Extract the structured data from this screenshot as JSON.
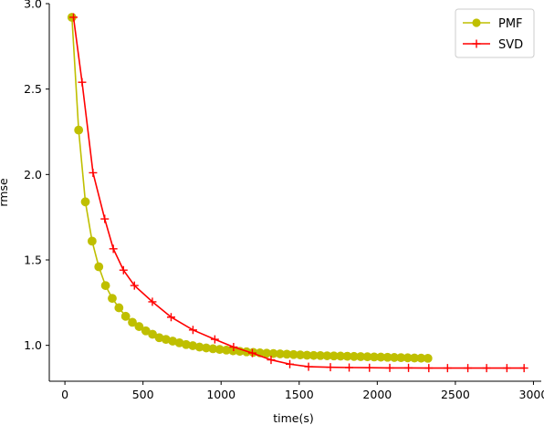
{
  "chart_data": {
    "type": "line",
    "xlabel": "time(s)",
    "ylabel": "rmse",
    "xlim": [
      -100,
      3050
    ],
    "ylim": [
      0.79,
      3.0
    ],
    "xticks": [
      0,
      500,
      1000,
      1500,
      2000,
      2500,
      3000
    ],
    "yticks": [
      1.0,
      1.5,
      2.0,
      2.5,
      3.0
    ],
    "xtick_labels": [
      "0",
      "500",
      "1000",
      "1500",
      "2000",
      "2500",
      "3000"
    ],
    "ytick_labels": [
      "1.0",
      "1.5",
      "2.0",
      "2.5",
      "3.0"
    ],
    "grid": false,
    "legend_position": "top-right",
    "series": [
      {
        "name": "PMF",
        "color": "#bfbf00",
        "marker": "circle",
        "x": [
          45,
          88,
          131,
          174,
          217,
          260,
          303,
          346,
          389,
          432,
          475,
          518,
          561,
          604,
          647,
          690,
          733,
          776,
          819,
          862,
          905,
          948,
          991,
          1034,
          1077,
          1120,
          1163,
          1206,
          1249,
          1292,
          1335,
          1378,
          1421,
          1464,
          1507,
          1550,
          1593,
          1636,
          1679,
          1722,
          1765,
          1808,
          1851,
          1894,
          1937,
          1980,
          2023,
          2066,
          2109,
          2152,
          2195,
          2238,
          2281,
          2324
        ],
        "y": [
          2.92,
          2.26,
          1.84,
          1.61,
          1.46,
          1.35,
          1.275,
          1.22,
          1.17,
          1.135,
          1.11,
          1.085,
          1.065,
          1.045,
          1.035,
          1.025,
          1.015,
          1.005,
          0.998,
          0.99,
          0.985,
          0.98,
          0.976,
          0.972,
          0.968,
          0.965,
          0.962,
          0.959,
          0.956,
          0.954,
          0.952,
          0.95,
          0.948,
          0.946,
          0.944,
          0.942,
          0.941,
          0.94,
          0.939,
          0.938,
          0.937,
          0.936,
          0.935,
          0.934,
          0.933,
          0.932,
          0.931,
          0.93,
          0.929,
          0.928,
          0.927,
          0.926,
          0.925,
          0.924
        ]
      },
      {
        "name": "SVD",
        "color": "#ff0000",
        "marker": "plus",
        "x": [
          55,
          110,
          180,
          255,
          310,
          375,
          445,
          560,
          680,
          820,
          960,
          1080,
          1200,
          1320,
          1440,
          1560,
          1700,
          1820,
          1950,
          2080,
          2200,
          2330,
          2450,
          2580,
          2700,
          2830,
          2940
        ],
        "y": [
          2.92,
          2.54,
          2.01,
          1.74,
          1.565,
          1.44,
          1.35,
          1.255,
          1.165,
          1.09,
          1.035,
          0.99,
          0.955,
          0.915,
          0.89,
          0.875,
          0.872,
          0.87,
          0.869,
          0.868,
          0.868,
          0.867,
          0.867,
          0.867,
          0.867,
          0.867,
          0.867
        ]
      }
    ]
  }
}
